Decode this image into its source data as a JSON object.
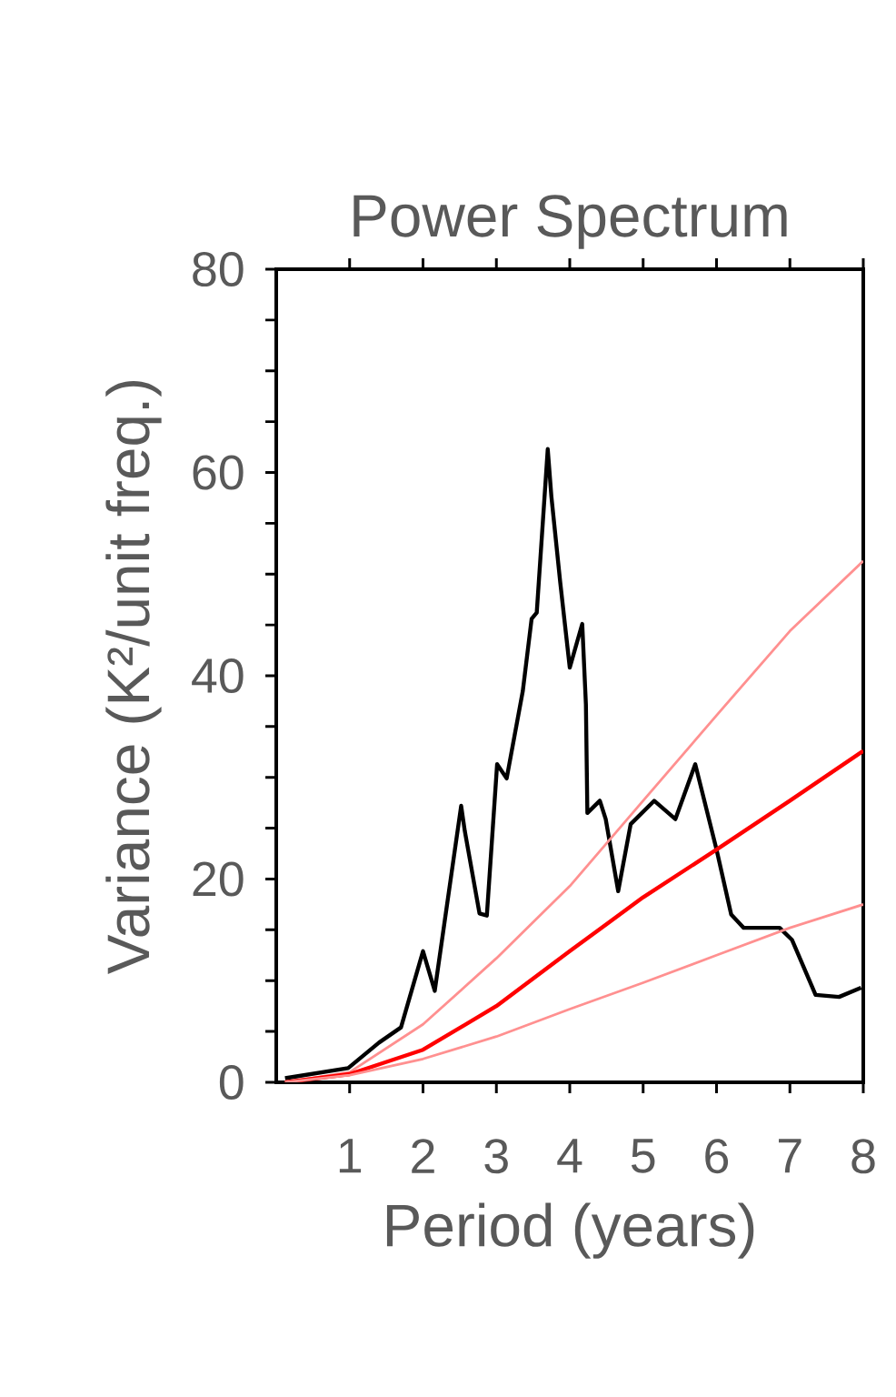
{
  "chart_data": {
    "type": "line",
    "title": "Power Spectrum",
    "xlabel": "Period (years)",
    "ylabel": "Variance (K²/unit freq.)",
    "xlim": [
      0,
      8
    ],
    "ylim": [
      0,
      80
    ],
    "xticks": [
      1,
      2,
      3,
      4,
      5,
      6,
      7,
      8
    ],
    "yticks": [
      0,
      {
        "value": 5,
        "label": null
      },
      {
        "value": 10,
        "label": null
      },
      {
        "value": 15,
        "label": null
      },
      20,
      {
        "value": 25,
        "label": null
      },
      {
        "value": 30,
        "label": null
      },
      {
        "value": 35,
        "label": null
      },
      40,
      {
        "value": 45,
        "label": null
      },
      {
        "value": 50,
        "label": null
      },
      {
        "value": 55,
        "label": null
      },
      60,
      {
        "value": 65,
        "label": null
      },
      {
        "value": 70,
        "label": null
      },
      {
        "value": 75,
        "label": null
      },
      80
    ],
    "grid": false,
    "marker": "none",
    "line_style": "solid",
    "series": [
      {
        "color": "#000000",
        "x": [
          0.12,
          0.98,
          1.4,
          1.7,
          2.0,
          2.16,
          2.52,
          2.57,
          2.77,
          2.87,
          3.01,
          3.14,
          3.36,
          3.48,
          3.55,
          3.7,
          3.75,
          3.87,
          4.0,
          4.17,
          4.22,
          4.24,
          4.41,
          4.49,
          4.66,
          4.83,
          5.15,
          5.44,
          5.71,
          6.0,
          6.2,
          6.37,
          6.86,
          7.03,
          7.35,
          7.67,
          7.97
        ],
        "values": [
          0.4,
          1.4,
          3.9,
          5.4,
          12.9,
          9,
          27.2,
          24.7,
          16.6,
          16.4,
          31.3,
          29.9,
          38.5,
          45.6,
          46.2,
          62.3,
          57.6,
          49.2,
          40.8,
          45.1,
          37.2,
          26.5,
          27.7,
          25.9,
          18.8,
          25.4,
          27.7,
          25.9,
          31.3,
          22.9,
          16.5,
          15.2,
          15.2,
          14.0,
          8.6,
          8.4,
          9.3
        ]
      },
      {
        "color": "#ff9090",
        "x": [
          0.12,
          1,
          2,
          3,
          4,
          5,
          6,
          7,
          8
        ],
        "values": [
          0,
          1,
          5.7,
          12.2,
          19.3,
          27.7,
          36.1,
          44.4,
          51.3
        ]
      },
      {
        "color": "#ff0000",
        "x": [
          0.12,
          1,
          2,
          3,
          4,
          5,
          6,
          7,
          8
        ],
        "values": [
          0,
          0.8,
          3.2,
          7.5,
          12.9,
          18.2,
          22.9,
          27.7,
          32.6
        ]
      },
      {
        "color": "#ff9090",
        "x": [
          0.12,
          1,
          2,
          3,
          4,
          5,
          6,
          7,
          8
        ],
        "values": [
          0,
          0.7,
          2.3,
          4.5,
          7.2,
          9.8,
          12.5,
          15.2,
          17.5
        ]
      }
    ]
  }
}
